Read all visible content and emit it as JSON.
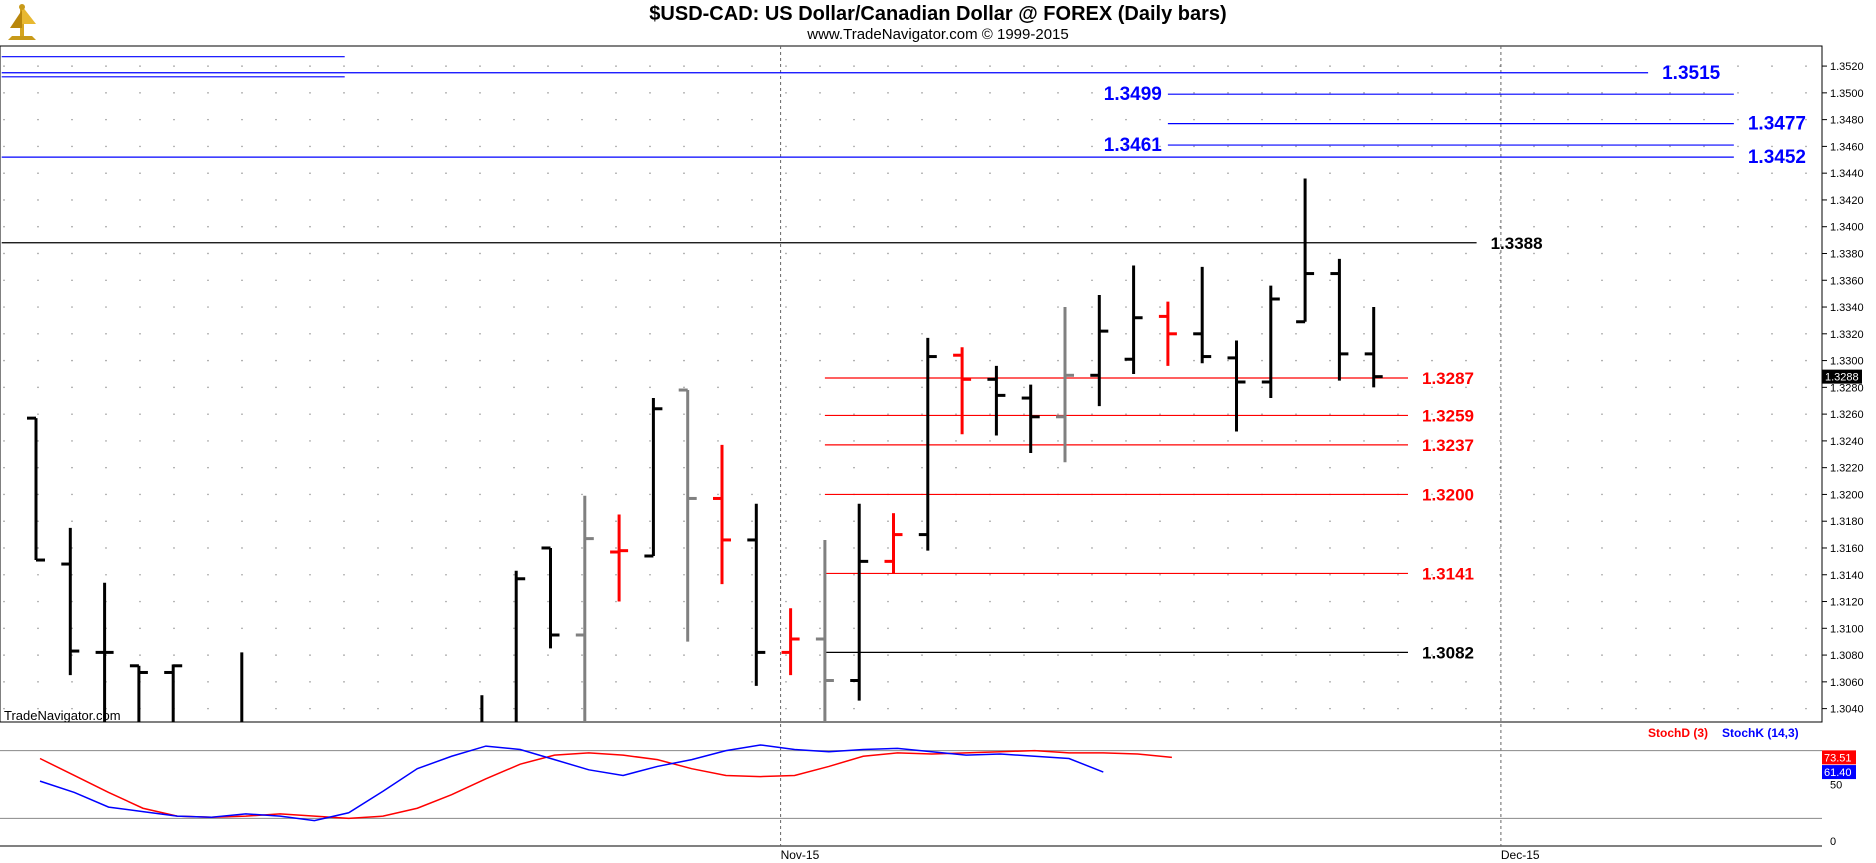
{
  "header": {
    "title": "$USD-CAD:  US Dollar/Canadian Dollar @ FOREX  (Daily bars)",
    "subtitle": "www.TradeNavigator.com © 1999-2015"
  },
  "watermark": "TradeNavigator.com",
  "colors": {
    "up_bar": "#000000",
    "down_bar": "#ff0000",
    "neutral_bar": "#808080",
    "blue_level": "#0000ff",
    "red_level": "#ff0000",
    "black_level": "#000000",
    "stoch_d": "#ff0000",
    "stoch_k": "#0000ff"
  },
  "chart_data": [
    {
      "type": "ohlc",
      "title": "$USD-CAD:  US Dollar/Canadian Dollar @ FOREX  (Daily bars)",
      "ylim": [
        1.303,
        1.3535
      ],
      "y_ticks": [
        "1.3040",
        "1.3060",
        "1.3080",
        "1.3100",
        "1.3120",
        "1.3140",
        "1.3160",
        "1.3180",
        "1.3200",
        "1.3220",
        "1.3240",
        "1.3260",
        "1.3280",
        "1.3300",
        "1.3320",
        "1.3340",
        "1.3360",
        "1.3380",
        "1.3400",
        "1.3420",
        "1.3440",
        "1.3460",
        "1.3480",
        "1.3500",
        "1.3520"
      ],
      "x_labels": [
        {
          "label": "Nov-15",
          "bar": 22
        },
        {
          "label": "Dec-15",
          "bar": 43
        }
      ],
      "last_price_label": "1.3288",
      "last_price": 1.3288,
      "bars": [
        {
          "o": 1.3257,
          "h": 1.3257,
          "l": 1.3151,
          "c": 1.3151,
          "color": "up"
        },
        {
          "o": 1.3148,
          "h": 1.3175,
          "l": 1.3065,
          "c": 1.3083,
          "color": "up"
        },
        {
          "o": 1.3082,
          "h": 1.3134,
          "l": 1.303,
          "c": 1.3082,
          "color": "up"
        },
        {
          "o": 1.3072,
          "h": 1.3072,
          "l": 1.303,
          "c": 1.3067,
          "color": "up"
        },
        {
          "o": 1.3067,
          "h": 1.3073,
          "l": 1.303,
          "c": 1.3072,
          "color": "up"
        },
        {
          "o": null,
          "h": null,
          "l": null,
          "c": null,
          "color": "none"
        },
        {
          "o": null,
          "h": 1.3082,
          "l": 1.303,
          "c": null,
          "color": "up"
        },
        {
          "o": null,
          "h": null,
          "l": null,
          "c": null,
          "color": "none"
        },
        {
          "o": null,
          "h": null,
          "l": null,
          "c": null,
          "color": "none"
        },
        {
          "o": null,
          "h": null,
          "l": null,
          "c": null,
          "color": "none"
        },
        {
          "o": null,
          "h": null,
          "l": null,
          "c": null,
          "color": "none"
        },
        {
          "o": null,
          "h": null,
          "l": null,
          "c": null,
          "color": "none"
        },
        {
          "o": null,
          "h": null,
          "l": null,
          "c": null,
          "color": "none"
        },
        {
          "o": null,
          "h": 1.305,
          "l": 1.303,
          "c": null,
          "color": "up"
        },
        {
          "o": null,
          "h": 1.3143,
          "l": 1.303,
          "c": 1.3137,
          "color": "up"
        },
        {
          "o": 1.316,
          "h": 1.316,
          "l": 1.3085,
          "c": 1.3095,
          "color": "up"
        },
        {
          "o": 1.3095,
          "h": 1.3199,
          "l": 1.303,
          "c": 1.3167,
          "color": "neutral"
        },
        {
          "o": 1.3157,
          "h": 1.3185,
          "l": 1.312,
          "c": 1.3158,
          "color": "down"
        },
        {
          "o": 1.3154,
          "h": 1.3272,
          "l": 1.3154,
          "c": 1.3264,
          "color": "up"
        },
        {
          "o": 1.3278,
          "h": 1.3278,
          "l": 1.309,
          "c": 1.3197,
          "color": "neutral"
        },
        {
          "o": 1.3197,
          "h": 1.3237,
          "l": 1.3133,
          "c": 1.3166,
          "color": "down"
        },
        {
          "o": 1.3166,
          "h": 1.3193,
          "l": 1.3057,
          "c": 1.3082,
          "color": "up"
        },
        {
          "o": 1.3082,
          "h": 1.3115,
          "l": 1.3065,
          "c": 1.3092,
          "color": "down"
        },
        {
          "o": 1.3092,
          "h": 1.3166,
          "l": 1.303,
          "c": 1.3061,
          "color": "neutral"
        },
        {
          "o": 1.3061,
          "h": 1.3193,
          "l": 1.3046,
          "c": 1.315,
          "color": "up"
        },
        {
          "o": 1.315,
          "h": 1.3186,
          "l": 1.3141,
          "c": 1.317,
          "color": "down"
        },
        {
          "o": 1.317,
          "h": 1.3317,
          "l": 1.3158,
          "c": 1.3303,
          "color": "up"
        },
        {
          "o": 1.3304,
          "h": 1.331,
          "l": 1.3245,
          "c": 1.3286,
          "color": "down"
        },
        {
          "o": 1.3286,
          "h": 1.3296,
          "l": 1.3244,
          "c": 1.3274,
          "color": "up"
        },
        {
          "o": 1.3272,
          "h": 1.3282,
          "l": 1.3231,
          "c": 1.3258,
          "color": "up"
        },
        {
          "o": 1.3258,
          "h": 1.334,
          "l": 1.3224,
          "c": 1.3289,
          "color": "neutral"
        },
        {
          "o": 1.3289,
          "h": 1.3349,
          "l": 1.3266,
          "c": 1.3322,
          "color": "up"
        },
        {
          "o": 1.3301,
          "h": 1.3371,
          "l": 1.329,
          "c": 1.3332,
          "color": "up"
        },
        {
          "o": 1.3333,
          "h": 1.3344,
          "l": 1.3296,
          "c": 1.332,
          "color": "down"
        },
        {
          "o": 1.332,
          "h": 1.337,
          "l": 1.3298,
          "c": 1.3303,
          "color": "up"
        },
        {
          "o": 1.3302,
          "h": 1.3315,
          "l": 1.3247,
          "c": 1.3284,
          "color": "up"
        },
        {
          "o": 1.3284,
          "h": 1.3356,
          "l": 1.3272,
          "c": 1.3346,
          "color": "up"
        },
        {
          "o": 1.3329,
          "h": 1.3436,
          "l": 1.3329,
          "c": 1.3365,
          "color": "up"
        },
        {
          "o": 1.3365,
          "h": 1.3376,
          "l": 1.3285,
          "c": 1.3305,
          "color": "up"
        },
        {
          "o": 1.3305,
          "h": 1.334,
          "l": 1.328,
          "c": 1.3288,
          "color": "up"
        }
      ],
      "levels": [
        {
          "value": 1.3515,
          "label": "1.3515",
          "color": "blue",
          "x_start_bar": -1,
          "x_end_bar": 47.0,
          "label_side": "right"
        },
        {
          "value": 1.3499,
          "label": "1.3499",
          "color": "blue",
          "x_start_bar": 33.0,
          "x_end_bar": 49.5,
          "label_side": "left"
        },
        {
          "value": 1.3477,
          "label": "1.3477",
          "color": "blue",
          "x_start_bar": 33.0,
          "x_end_bar": 49.5,
          "label_side": "right"
        },
        {
          "value": 1.3461,
          "label": "1.3461",
          "color": "blue",
          "x_start_bar": 33.0,
          "x_end_bar": 49.5,
          "label_side": "left"
        },
        {
          "value": 1.3452,
          "label": "1.3452",
          "color": "blue",
          "x_start_bar": -1,
          "x_end_bar": 49.5,
          "label_side": "right"
        },
        {
          "value": 1.3388,
          "label": "1.3388",
          "color": "black",
          "x_start_bar": -1,
          "x_end_bar": 42.0,
          "label_side": "right"
        },
        {
          "value": 1.3287,
          "label": "1.3287",
          "color": "red",
          "x_start_bar": 23.0,
          "x_end_bar": 40.0,
          "label_side": "right"
        },
        {
          "value": 1.3259,
          "label": "1.3259",
          "color": "red",
          "x_start_bar": 23.0,
          "x_end_bar": 40.0,
          "label_side": "right"
        },
        {
          "value": 1.3237,
          "label": "1.3237",
          "color": "red",
          "x_start_bar": 23.0,
          "x_end_bar": 40.0,
          "label_side": "right"
        },
        {
          "value": 1.32,
          "label": "1.3200",
          "color": "red",
          "x_start_bar": 23.0,
          "x_end_bar": 40.0,
          "label_side": "right"
        },
        {
          "value": 1.3141,
          "label": "1.3141",
          "color": "red",
          "x_start_bar": 23.0,
          "x_end_bar": 40.0,
          "label_side": "right"
        },
        {
          "value": 1.3082,
          "label": "1.3082",
          "color": "black",
          "x_start_bar": 23.0,
          "x_end_bar": 40.0,
          "label_side": "right"
        }
      ],
      "short_levels": [
        {
          "value": 1.3527,
          "x_start_bar": -1,
          "x_end_bar": 9.0
        },
        {
          "value": 1.3512,
          "x_start_bar": -1,
          "x_end_bar": 9.0
        }
      ]
    },
    {
      "type": "line",
      "title": "",
      "ylim": [
        0,
        100
      ],
      "y_ticks": [
        "0",
        "50"
      ],
      "reference_lines": [
        20,
        80
      ],
      "series": [
        {
          "name": "StochD (3)",
          "color": "red",
          "last_label": "73.51",
          "values": [
            73,
            58,
            43,
            29,
            22,
            21,
            22,
            24,
            22,
            20,
            22,
            29,
            41,
            55,
            68,
            76,
            78,
            76,
            72,
            64,
            58,
            57,
            58,
            66,
            75,
            78,
            77,
            78,
            79,
            80,
            78,
            78,
            77,
            74
          ]
        },
        {
          "name": "StochK (14,3)",
          "color": "blue",
          "last_label": "61.40",
          "values": [
            53,
            43,
            30,
            26,
            22,
            21,
            24,
            22,
            18,
            25,
            44,
            64,
            75,
            84,
            81,
            72,
            63,
            58,
            66,
            72,
            80,
            85,
            81,
            79,
            81,
            82,
            79,
            76,
            77,
            75,
            73,
            61
          ]
        }
      ],
      "x_labels": [
        "Nov-15",
        "Dec-15"
      ]
    }
  ]
}
